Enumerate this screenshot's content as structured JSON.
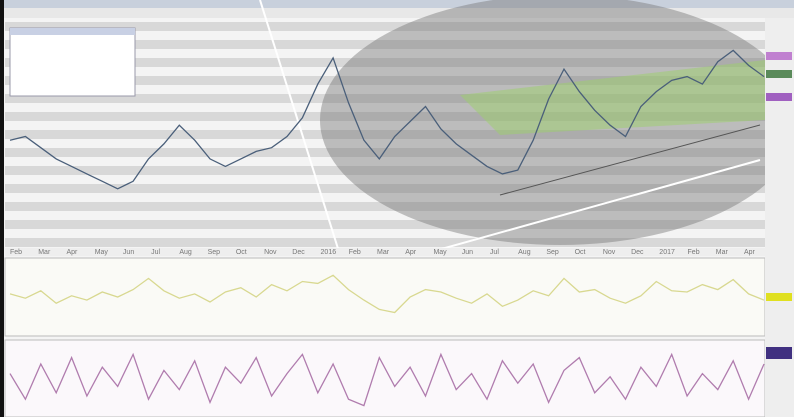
{
  "chart_data": [
    {
      "type": "line",
      "ylim": [
        0,
        100
      ],
      "x_labels": [
        "Feb",
        "Mar",
        "Apr",
        "May",
        "Jun",
        "Jul",
        "Aug",
        "Sep",
        "Oct",
        "Nov",
        "Dec",
        "2016",
        "Feb",
        "Mar",
        "Apr",
        "May",
        "Jun",
        "Jul",
        "Aug",
        "Sep",
        "Oct",
        "Nov",
        "Dec",
        "2017",
        "Feb",
        "Mar",
        "Apr"
      ],
      "series": [
        {
          "color": "#4a5f7a",
          "values": [
            40,
            42,
            36,
            30,
            26,
            22,
            18,
            14,
            18,
            30,
            38,
            48,
            40,
            30,
            26,
            30,
            34,
            36,
            42,
            52,
            70,
            84,
            60,
            40,
            30,
            42,
            50,
            58,
            46,
            38,
            32,
            26,
            22,
            24,
            40,
            62,
            78,
            66,
            56,
            48,
            42,
            58,
            66,
            72,
            74,
            70,
            82,
            88,
            80,
            74
          ]
        }
      ]
    },
    {
      "type": "line",
      "ylim": [
        0,
        100
      ],
      "series": [
        {
          "color": "#d8d890",
          "values": [
            55,
            48,
            60,
            40,
            52,
            45,
            58,
            50,
            62,
            80,
            60,
            48,
            55,
            42,
            58,
            65,
            50,
            70,
            60,
            75,
            72,
            85,
            62,
            45,
            30,
            25,
            50,
            62,
            58,
            48,
            40,
            55,
            35,
            45,
            60,
            52,
            80,
            58,
            62,
            48,
            40,
            52,
            75,
            60,
            58,
            70,
            62,
            78,
            55,
            45
          ]
        }
      ]
    },
    {
      "type": "line",
      "ylim": [
        0,
        100
      ],
      "series": [
        {
          "color": "#b07cae",
          "values": [
            60,
            20,
            75,
            30,
            85,
            25,
            70,
            40,
            90,
            20,
            65,
            35,
            80,
            15,
            70,
            45,
            85,
            25,
            60,
            90,
            30,
            75,
            20,
            10,
            85,
            40,
            70,
            25,
            90,
            35,
            60,
            20,
            80,
            45,
            75,
            15,
            65,
            85,
            30,
            55,
            20,
            70,
            40,
            90,
            25,
            60,
            35,
            80,
            20,
            75
          ]
        }
      ]
    }
  ]
}
